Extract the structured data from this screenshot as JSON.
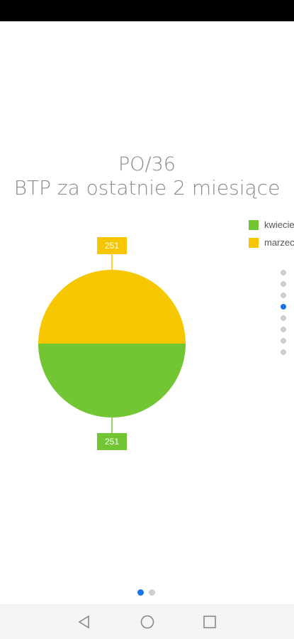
{
  "chart_data": {
    "type": "pie",
    "title": "PO/36",
    "subtitle": "BTP za ostatnie 2 miesiące",
    "series": [
      {
        "name": "kwiecień",
        "value": 251,
        "color": "#72c633"
      },
      {
        "name": "marzec",
        "value": 251,
        "color": "#f6c700"
      }
    ],
    "legend_position": "right"
  },
  "pager": {
    "pages": 2,
    "active": 0
  },
  "side_indicator": {
    "count": 8,
    "active": 3
  },
  "nav": {
    "back": "back-icon",
    "home": "home-icon",
    "recents": "recents-icon"
  }
}
